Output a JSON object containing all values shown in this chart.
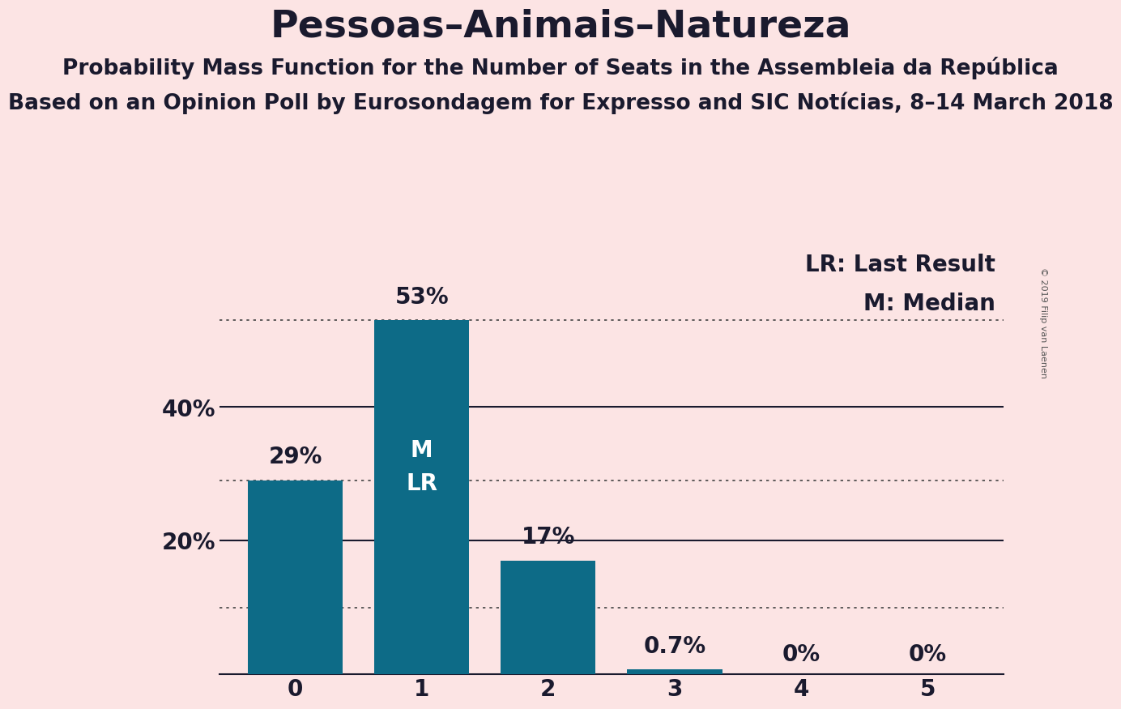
{
  "title": "Pessoas–Animais–Natureza",
  "subtitle1": "Probability Mass Function for the Number of Seats in the Assembleia da República",
  "subtitle2": "Based on an Opinion Poll by Eurosondagem for Expresso and SIC Notícias, 8–14 March 2018",
  "copyright": "© 2019 Filip van Laenen",
  "categories": [
    0,
    1,
    2,
    3,
    4,
    5
  ],
  "values": [
    29,
    53,
    17,
    0.7,
    0,
    0
  ],
  "bar_color": "#0d6b87",
  "background_color": "#fce4e4",
  "bar_labels": [
    "29%",
    "53%",
    "17%",
    "0.7%",
    "0%",
    "0%"
  ],
  "legend_lr": "LR: Last Result",
  "legend_m": "M: Median",
  "ylim": [
    0,
    65
  ],
  "title_fontsize": 34,
  "subtitle1_fontsize": 19,
  "subtitle2_fontsize": 19,
  "bar_label_fontsize": 20,
  "axis_tick_fontsize": 20,
  "legend_fontsize": 20,
  "text_color": "#1a1a2e"
}
